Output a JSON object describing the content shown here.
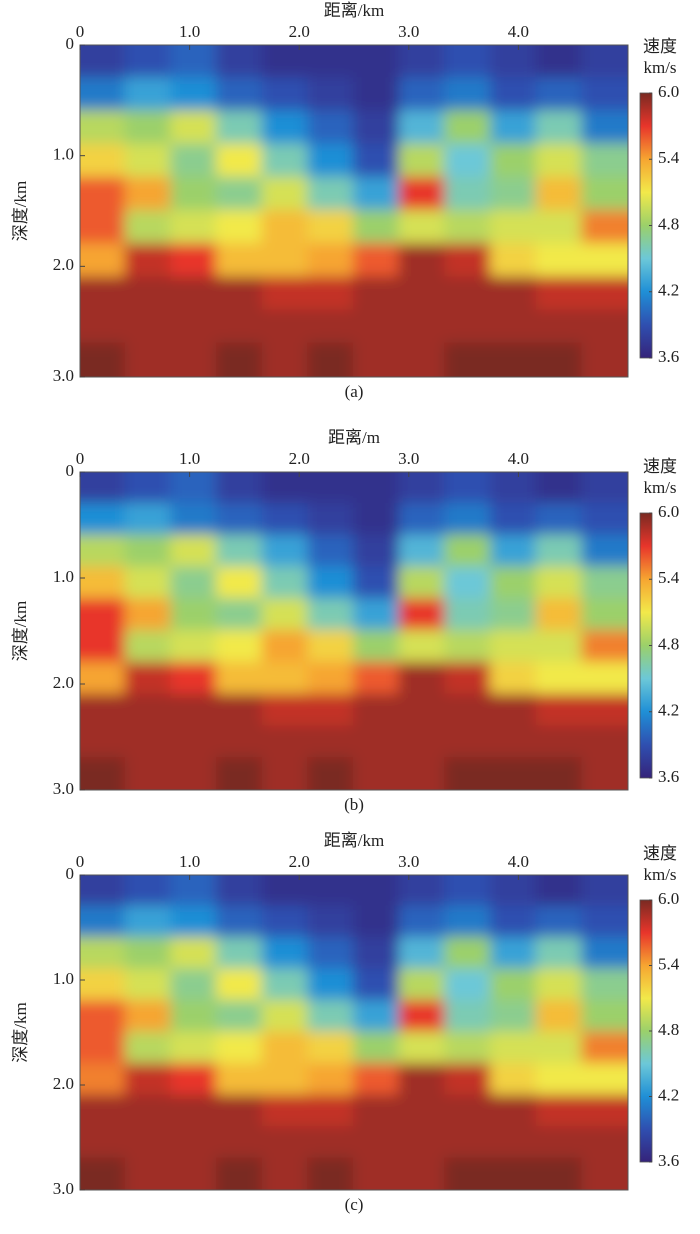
{
  "chart_data": [
    {
      "type": "heatmap",
      "title": "距离/km",
      "y_label": "深度/km",
      "caption": "(a)",
      "xlim": [
        0,
        5.0
      ],
      "xticks": [
        0,
        {
          "value": 1,
          "label": "1.0"
        },
        {
          "value": 2,
          "label": "2.0"
        },
        {
          "value": 3,
          "label": "3.0"
        },
        {
          "value": 4,
          "label": "4.0"
        }
      ],
      "ylim": [
        0,
        3.0
      ],
      "yticks": [
        0,
        {
          "value": 1,
          "label": "1.0"
        },
        {
          "value": 2,
          "label": "2.0"
        },
        {
          "value": 3,
          "label": "3.0"
        }
      ],
      "colorbar_label": "速度",
      "colorbar_unit": "km/s",
      "zlim": [
        3.6,
        6.0
      ],
      "zticks": [
        {
          "value": 6,
          "label": "6.0"
        },
        5.4,
        4.8,
        4.2,
        3.6
      ],
      "colormap": [
        "#35237a",
        "#2f4fb0",
        "#1f8fd6",
        "#6cc8d8",
        "#9bd06a",
        "#f2e94a",
        "#f6a531",
        "#e8352b",
        "#7a2a22"
      ],
      "values": [
        [
          3.8,
          3.9,
          4.0,
          3.8,
          3.7,
          3.7,
          3.7,
          3.8,
          3.9,
          3.8,
          3.7,
          3.8
        ],
        [
          4.1,
          4.3,
          4.2,
          4.0,
          3.9,
          3.8,
          3.7,
          4.0,
          4.1,
          3.9,
          4.0,
          3.9
        ],
        [
          4.9,
          4.8,
          5.0,
          4.6,
          4.2,
          4.0,
          3.8,
          4.4,
          4.8,
          4.3,
          4.6,
          4.1
        ],
        [
          5.2,
          5.0,
          4.7,
          5.1,
          4.6,
          4.2,
          3.9,
          4.9,
          4.5,
          4.8,
          5.0,
          4.7
        ],
        [
          5.6,
          5.4,
          4.8,
          4.7,
          5.0,
          4.6,
          4.3,
          5.7,
          4.6,
          4.7,
          5.3,
          4.8
        ],
        [
          5.6,
          4.9,
          5.0,
          5.1,
          5.3,
          5.2,
          4.8,
          5.0,
          4.9,
          5.0,
          5.0,
          5.5
        ],
        [
          5.4,
          5.8,
          5.7,
          5.3,
          5.3,
          5.4,
          5.6,
          5.9,
          5.8,
          5.2,
          5.1,
          5.1
        ],
        [
          5.9,
          5.9,
          5.9,
          5.9,
          5.8,
          5.8,
          5.9,
          5.9,
          5.9,
          5.9,
          5.8,
          5.8
        ],
        [
          5.9,
          5.9,
          5.9,
          5.9,
          5.9,
          5.9,
          5.9,
          5.9,
          5.9,
          5.9,
          5.9,
          5.9
        ],
        [
          6.0,
          5.9,
          5.9,
          6.0,
          5.9,
          6.0,
          5.9,
          5.9,
          6.0,
          6.0,
          6.0,
          5.9
        ]
      ]
    },
    {
      "type": "heatmap",
      "title": "距离/m",
      "y_label": "深度/km",
      "caption": "(b)",
      "xlim": [
        0,
        5.0
      ],
      "xticks": [
        0,
        {
          "value": 1,
          "label": "1.0"
        },
        {
          "value": 2,
          "label": "2.0"
        },
        {
          "value": 3,
          "label": "3.0"
        },
        {
          "value": 4,
          "label": "4.0"
        }
      ],
      "ylim": [
        0,
        3.0
      ],
      "yticks": [
        0,
        {
          "value": 1,
          "label": "1.0"
        },
        {
          "value": 2,
          "label": "2.0"
        },
        {
          "value": 3,
          "label": "3.0"
        }
      ],
      "colorbar_label": "速度",
      "colorbar_unit": "km/s",
      "zlim": [
        3.6,
        6.0
      ],
      "zticks": [
        {
          "value": 6,
          "label": "6.0"
        },
        5.4,
        4.8,
        4.2,
        3.6
      ],
      "colormap": [
        "#35237a",
        "#2f4fb0",
        "#1f8fd6",
        "#6cc8d8",
        "#9bd06a",
        "#f2e94a",
        "#f6a531",
        "#e8352b",
        "#7a2a22"
      ],
      "values": [
        [
          3.8,
          3.9,
          4.0,
          3.8,
          3.7,
          3.7,
          3.7,
          3.8,
          3.9,
          3.8,
          3.7,
          3.8
        ],
        [
          4.2,
          4.3,
          4.1,
          4.0,
          3.9,
          3.8,
          3.7,
          4.0,
          4.1,
          3.9,
          4.0,
          3.9
        ],
        [
          4.9,
          4.8,
          5.0,
          4.6,
          4.3,
          4.0,
          3.8,
          4.4,
          4.8,
          4.3,
          4.6,
          4.1
        ],
        [
          5.3,
          5.0,
          4.7,
          5.1,
          4.6,
          4.2,
          3.9,
          4.9,
          4.5,
          4.8,
          5.0,
          4.7
        ],
        [
          5.7,
          5.4,
          4.8,
          4.7,
          5.0,
          4.6,
          4.3,
          5.7,
          4.6,
          4.7,
          5.3,
          4.8
        ],
        [
          5.7,
          4.9,
          5.0,
          5.1,
          5.4,
          5.2,
          4.8,
          5.0,
          4.9,
          5.0,
          5.0,
          5.5
        ],
        [
          5.4,
          5.8,
          5.7,
          5.3,
          5.3,
          5.4,
          5.6,
          5.9,
          5.8,
          5.2,
          5.1,
          5.1
        ],
        [
          5.9,
          5.9,
          5.9,
          5.9,
          5.8,
          5.8,
          5.9,
          5.9,
          5.9,
          5.9,
          5.8,
          5.8
        ],
        [
          5.9,
          5.9,
          5.9,
          5.9,
          5.9,
          5.9,
          5.9,
          5.9,
          5.9,
          5.9,
          5.9,
          5.9
        ],
        [
          6.0,
          5.9,
          5.9,
          6.0,
          5.9,
          6.0,
          5.9,
          5.9,
          6.0,
          6.0,
          6.0,
          5.9
        ]
      ]
    },
    {
      "type": "heatmap",
      "title": "距离/km",
      "y_label": "深度/km",
      "caption": "(c)",
      "xlim": [
        0,
        5.0
      ],
      "xticks": [
        0,
        {
          "value": 1,
          "label": "1.0"
        },
        {
          "value": 2,
          "label": "2.0"
        },
        {
          "value": 3,
          "label": "3.0"
        },
        {
          "value": 4,
          "label": "4.0"
        }
      ],
      "ylim": [
        0,
        3.0
      ],
      "yticks": [
        0,
        {
          "value": 1,
          "label": "1.0"
        },
        {
          "value": 2,
          "label": "2.0"
        },
        {
          "value": 3,
          "label": "3.0"
        }
      ],
      "colorbar_label": "速度",
      "colorbar_unit": "km/s",
      "zlim": [
        3.6,
        6.0
      ],
      "zticks": [
        {
          "value": 6,
          "label": "6.0"
        },
        5.4,
        4.8,
        4.2,
        3.6
      ],
      "colormap": [
        "#35237a",
        "#2f4fb0",
        "#1f8fd6",
        "#6cc8d8",
        "#9bd06a",
        "#f2e94a",
        "#f6a531",
        "#e8352b",
        "#7a2a22"
      ],
      "values": [
        [
          3.8,
          3.9,
          4.0,
          3.8,
          3.7,
          3.7,
          3.7,
          3.8,
          3.9,
          3.8,
          3.7,
          3.8
        ],
        [
          4.1,
          4.3,
          4.2,
          4.0,
          3.9,
          3.8,
          3.7,
          4.0,
          4.1,
          3.9,
          4.0,
          3.9
        ],
        [
          4.9,
          4.8,
          5.0,
          4.6,
          4.2,
          4.0,
          3.8,
          4.4,
          4.8,
          4.3,
          4.6,
          4.1
        ],
        [
          5.2,
          5.0,
          4.7,
          5.1,
          4.6,
          4.2,
          3.9,
          4.9,
          4.5,
          4.8,
          5.0,
          4.7
        ],
        [
          5.6,
          5.4,
          4.8,
          4.7,
          5.0,
          4.6,
          4.3,
          5.7,
          4.6,
          4.7,
          5.3,
          4.8
        ],
        [
          5.6,
          4.9,
          5.0,
          5.1,
          5.3,
          5.2,
          4.8,
          5.0,
          4.9,
          5.0,
          5.0,
          5.5
        ],
        [
          5.5,
          5.8,
          5.7,
          5.3,
          5.3,
          5.4,
          5.6,
          5.9,
          5.8,
          5.2,
          5.1,
          5.1
        ],
        [
          5.9,
          5.9,
          5.9,
          5.9,
          5.8,
          5.8,
          5.9,
          5.9,
          5.9,
          5.9,
          5.8,
          5.8
        ],
        [
          5.9,
          5.9,
          5.9,
          5.9,
          5.9,
          5.9,
          5.9,
          5.9,
          5.9,
          5.9,
          5.9,
          5.9
        ],
        [
          6.0,
          5.9,
          5.9,
          6.0,
          5.9,
          6.0,
          5.9,
          5.9,
          6.0,
          6.0,
          6.0,
          5.9
        ]
      ]
    }
  ]
}
